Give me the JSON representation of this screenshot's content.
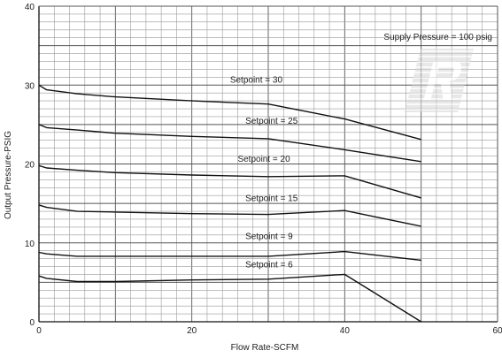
{
  "chart_data": {
    "type": "line",
    "xlabel": "Flow Rate-SCFM",
    "ylabel": "Output Pressure-PSIG",
    "xlim": [
      0,
      60
    ],
    "ylim": [
      0,
      40
    ],
    "x_ticks": [
      "0",
      "20",
      "40",
      "60"
    ],
    "y_ticks": [
      "0",
      "10",
      "20",
      "30",
      "40"
    ],
    "grid": true,
    "annotation": "Supply Pressure = 100 psig",
    "logo": "company-logo-watermark",
    "series": [
      {
        "name": "Setpoint = 30",
        "x": [
          0,
          1,
          5,
          10,
          20,
          30,
          40,
          50
        ],
        "y": [
          30,
          29.4,
          28.9,
          28.5,
          28,
          27.6,
          25.7,
          23.1
        ],
        "label_at": [
          25,
          30.3
        ]
      },
      {
        "name": "Setpoint = 25",
        "x": [
          0,
          1,
          5,
          10,
          20,
          30,
          40,
          50
        ],
        "y": [
          25,
          24.6,
          24.3,
          23.9,
          23.5,
          23.2,
          21.8,
          20.3
        ],
        "label_at": [
          27,
          25.1
        ]
      },
      {
        "name": "Setpoint = 20",
        "x": [
          0,
          1,
          5,
          10,
          20,
          30,
          40,
          50
        ],
        "y": [
          19.8,
          19.5,
          19.2,
          18.9,
          18.6,
          18.4,
          18.5,
          15.7
        ],
        "label_at": [
          26,
          20.3
        ]
      },
      {
        "name": "Setpoint = 15",
        "x": [
          0,
          1,
          5,
          10,
          20,
          30,
          40,
          50
        ],
        "y": [
          14.8,
          14.5,
          14.0,
          13.9,
          13.7,
          13.6,
          14.1,
          12.1
        ],
        "label_at": [
          27,
          15.3
        ]
      },
      {
        "name": "Setpoint = 9",
        "x": [
          0,
          1,
          5,
          10,
          20,
          30,
          40,
          50
        ],
        "y": [
          8.8,
          8.6,
          8.3,
          8.3,
          8.3,
          8.3,
          8.9,
          7.8
        ],
        "label_at": [
          27,
          10.5
        ]
      },
      {
        "name": "Setpoint = 6",
        "x": [
          0,
          1,
          5,
          10,
          20,
          30,
          40,
          50
        ],
        "y": [
          5.8,
          5.5,
          5.1,
          5.1,
          5.3,
          5.4,
          6.0,
          0
        ],
        "label_at": [
          27,
          6.9
        ]
      }
    ]
  }
}
